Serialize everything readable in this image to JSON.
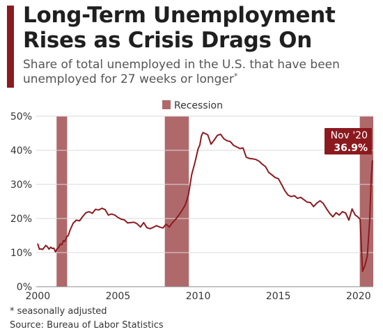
{
  "title": "Long-Term Unemployment Rises as Crisis Drags On",
  "subtitle": "Share of total unemployed in the U.S. that have been unemployed for 27 weeks or longer",
  "subtitle_marker": "*",
  "footnote": "* seasonally adjusted",
  "source": "Source: Bureau of Labor Statistics",
  "colors": {
    "accent": "#8b1a1f",
    "line": "#8b1a1f",
    "recession": "#b0696b",
    "grid": "#d9d9d9",
    "annotation_bg": "#8b1a1f"
  },
  "chart_data": {
    "type": "line",
    "legend": {
      "label": "Recession",
      "position": "top-center"
    },
    "annotation": {
      "label": "Nov '20",
      "value_label": "36.9%"
    },
    "x_ticks": [
      2000,
      2005,
      2010,
      2015,
      2020
    ],
    "y_ticks": [
      "0%",
      "10%",
      "20%",
      "30%",
      "40%",
      "50%"
    ],
    "xlim": [
      1999.9,
      2020.92
    ],
    "ylim": [
      0,
      50
    ],
    "grid": "horizontal",
    "recessions": [
      [
        2001.17,
        2001.83
      ],
      [
        2007.92,
        2009.42
      ],
      [
        2020.08,
        2020.92
      ]
    ],
    "series": [
      {
        "values": [
          [
            2000.0,
            12.5
          ],
          [
            2000.1,
            11.0
          ],
          [
            2000.2,
            11.1
          ],
          [
            2000.3,
            10.9
          ],
          [
            2000.4,
            11.5
          ],
          [
            2000.5,
            12.1
          ],
          [
            2000.6,
            11.7
          ],
          [
            2000.7,
            11.0
          ],
          [
            2000.8,
            11.6
          ],
          [
            2000.9,
            11.2
          ],
          [
            2001.0,
            11.3
          ],
          [
            2001.1,
            10.2
          ],
          [
            2001.2,
            11.1
          ],
          [
            2001.3,
            11.5
          ],
          [
            2001.4,
            12.5
          ],
          [
            2001.5,
            12.3
          ],
          [
            2001.6,
            13.5
          ],
          [
            2001.7,
            13.3
          ],
          [
            2001.8,
            14.6
          ],
          [
            2001.9,
            15.0
          ],
          [
            2002.0,
            16.5
          ],
          [
            2002.2,
            18.6
          ],
          [
            2002.4,
            19.5
          ],
          [
            2002.6,
            19.3
          ],
          [
            2002.8,
            20.6
          ],
          [
            2003.0,
            21.7
          ],
          [
            2003.2,
            22.0
          ],
          [
            2003.4,
            21.5
          ],
          [
            2003.6,
            22.7
          ],
          [
            2003.8,
            22.5
          ],
          [
            2004.0,
            23.0
          ],
          [
            2004.2,
            22.6
          ],
          [
            2004.4,
            21.0
          ],
          [
            2004.6,
            21.3
          ],
          [
            2004.8,
            21.0
          ],
          [
            2005.0,
            20.3
          ],
          [
            2005.2,
            19.8
          ],
          [
            2005.4,
            19.6
          ],
          [
            2005.6,
            18.7
          ],
          [
            2005.8,
            18.8
          ],
          [
            2006.0,
            18.9
          ],
          [
            2006.2,
            18.4
          ],
          [
            2006.4,
            17.5
          ],
          [
            2006.6,
            18.8
          ],
          [
            2006.8,
            17.3
          ],
          [
            2007.0,
            17.0
          ],
          [
            2007.2,
            17.4
          ],
          [
            2007.4,
            17.9
          ],
          [
            2007.6,
            17.5
          ],
          [
            2007.8,
            17.2
          ],
          [
            2008.0,
            18.3
          ],
          [
            2008.2,
            17.5
          ],
          [
            2008.4,
            18.8
          ],
          [
            2008.6,
            19.8
          ],
          [
            2008.8,
            21.0
          ],
          [
            2009.0,
            22.4
          ],
          [
            2009.2,
            24.0
          ],
          [
            2009.4,
            27.0
          ],
          [
            2009.6,
            32.9
          ],
          [
            2009.8,
            36.5
          ],
          [
            2010.0,
            40.5
          ],
          [
            2010.1,
            41.5
          ],
          [
            2010.2,
            44.2
          ],
          [
            2010.3,
            45.2
          ],
          [
            2010.4,
            45.0
          ],
          [
            2010.6,
            44.5
          ],
          [
            2010.8,
            41.8
          ],
          [
            2011.0,
            43.0
          ],
          [
            2011.2,
            44.4
          ],
          [
            2011.4,
            44.7
          ],
          [
            2011.6,
            43.4
          ],
          [
            2011.8,
            42.8
          ],
          [
            2012.0,
            42.6
          ],
          [
            2012.2,
            41.5
          ],
          [
            2012.4,
            41.0
          ],
          [
            2012.6,
            40.5
          ],
          [
            2012.8,
            40.7
          ],
          [
            2013.0,
            38.0
          ],
          [
            2013.2,
            37.6
          ],
          [
            2013.4,
            37.5
          ],
          [
            2013.6,
            37.3
          ],
          [
            2013.8,
            36.8
          ],
          [
            2014.0,
            35.9
          ],
          [
            2014.2,
            35.2
          ],
          [
            2014.4,
            33.5
          ],
          [
            2014.6,
            32.8
          ],
          [
            2014.8,
            32.0
          ],
          [
            2015.0,
            31.7
          ],
          [
            2015.2,
            30.0
          ],
          [
            2015.4,
            28.2
          ],
          [
            2015.6,
            26.9
          ],
          [
            2015.8,
            26.4
          ],
          [
            2016.0,
            26.7
          ],
          [
            2016.2,
            25.9
          ],
          [
            2016.4,
            26.2
          ],
          [
            2016.6,
            25.5
          ],
          [
            2016.8,
            24.8
          ],
          [
            2017.0,
            24.7
          ],
          [
            2017.2,
            23.5
          ],
          [
            2017.4,
            24.5
          ],
          [
            2017.6,
            25.2
          ],
          [
            2017.8,
            24.4
          ],
          [
            2018.0,
            22.9
          ],
          [
            2018.2,
            21.5
          ],
          [
            2018.4,
            20.5
          ],
          [
            2018.6,
            21.7
          ],
          [
            2018.8,
            21.0
          ],
          [
            2019.0,
            22.0
          ],
          [
            2019.2,
            21.6
          ],
          [
            2019.4,
            19.5
          ],
          [
            2019.6,
            22.8
          ],
          [
            2019.8,
            21.0
          ],
          [
            2019.95,
            20.5
          ],
          [
            2020.1,
            19.8
          ],
          [
            2020.25,
            4.5
          ],
          [
            2020.4,
            6.2
          ],
          [
            2020.55,
            9.0
          ],
          [
            2020.7,
            19.5
          ],
          [
            2020.8,
            32.5
          ],
          [
            2020.87,
            36.9
          ]
        ]
      }
    ]
  }
}
